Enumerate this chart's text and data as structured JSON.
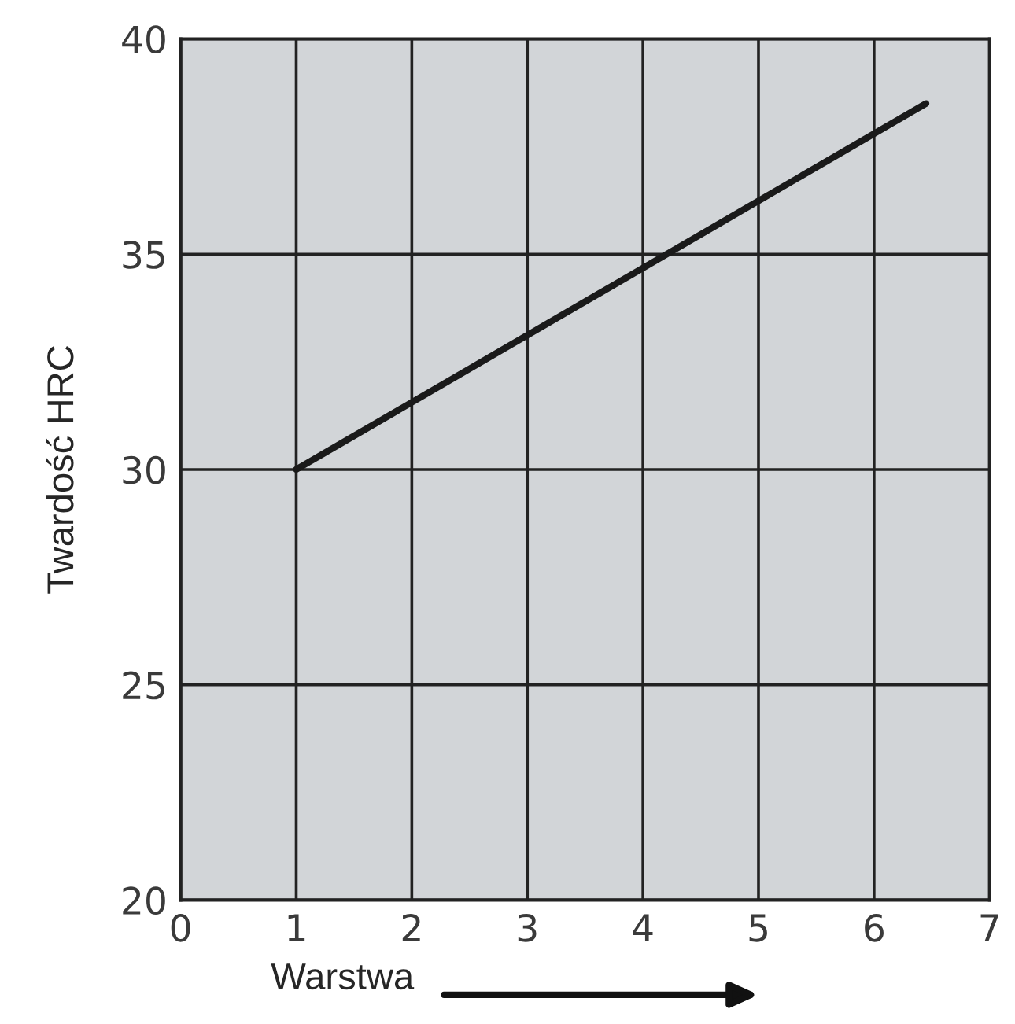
{
  "chart_data": {
    "type": "line",
    "xlabel": "Warstwa",
    "ylabel": "Twardość HRC",
    "series": [
      {
        "color": "#1a1a1a",
        "x": [
          1,
          6.45
        ],
        "values": [
          30,
          38.5
        ]
      }
    ],
    "xlim": [
      0,
      7
    ],
    "xticks": [
      0,
      1,
      2,
      3,
      4,
      5,
      6,
      7
    ],
    "ylim": [
      20,
      40
    ],
    "yticks": [
      20,
      25,
      30,
      35,
      40
    ],
    "grid": true,
    "marker": "none",
    "line_style": "solid"
  }
}
